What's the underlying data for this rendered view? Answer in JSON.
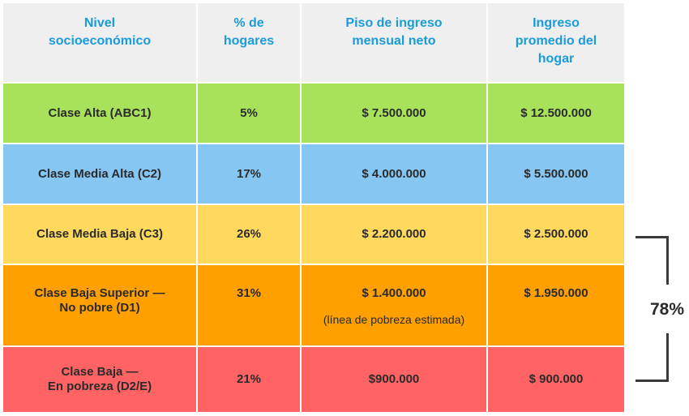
{
  "headers": {
    "nivel": "Nivel\nsocioeconómico",
    "hogares": "% de\nhogares",
    "piso": "Piso de ingreso\nmensual neto",
    "promedio": "Ingreso\npromedio del\nhogar"
  },
  "rows": [
    {
      "nivel": "Clase Alta (ABC1)",
      "hogares": "5%",
      "piso": "$ 7.500.000",
      "promedio": "$ 12.500.000",
      "color": "#a8e25a"
    },
    {
      "nivel": "Clase Media Alta (C2)",
      "hogares": "17%",
      "piso": "$ 4.000.000",
      "promedio": "$ 5.500.000",
      "color": "#86c6f2"
    },
    {
      "nivel": "Clase Media Baja (C3)",
      "hogares": "26%",
      "piso": "$ 2.200.000",
      "promedio": "$ 2.500.000",
      "color": "#ffd95d"
    },
    {
      "nivel": "Clase Baja Superior —\nNo pobre (D1)",
      "hogares": "31%",
      "piso": "$ 1.400.000",
      "piso_note": "(línea de pobreza estimada)",
      "promedio": "$ 1.950.000",
      "color": "#ff9f00"
    },
    {
      "nivel": "Clase Baja —\nEn pobreza (D2/E)",
      "hogares": "21%",
      "piso": "$900.000",
      "promedio": "$ 900.000",
      "color": "#ff6363"
    }
  ],
  "bracket_label": "78%",
  "colors": {
    "header_text": "#1b9bd7",
    "header_bg": "#efefef",
    "body_text": "#2b2b2b"
  }
}
